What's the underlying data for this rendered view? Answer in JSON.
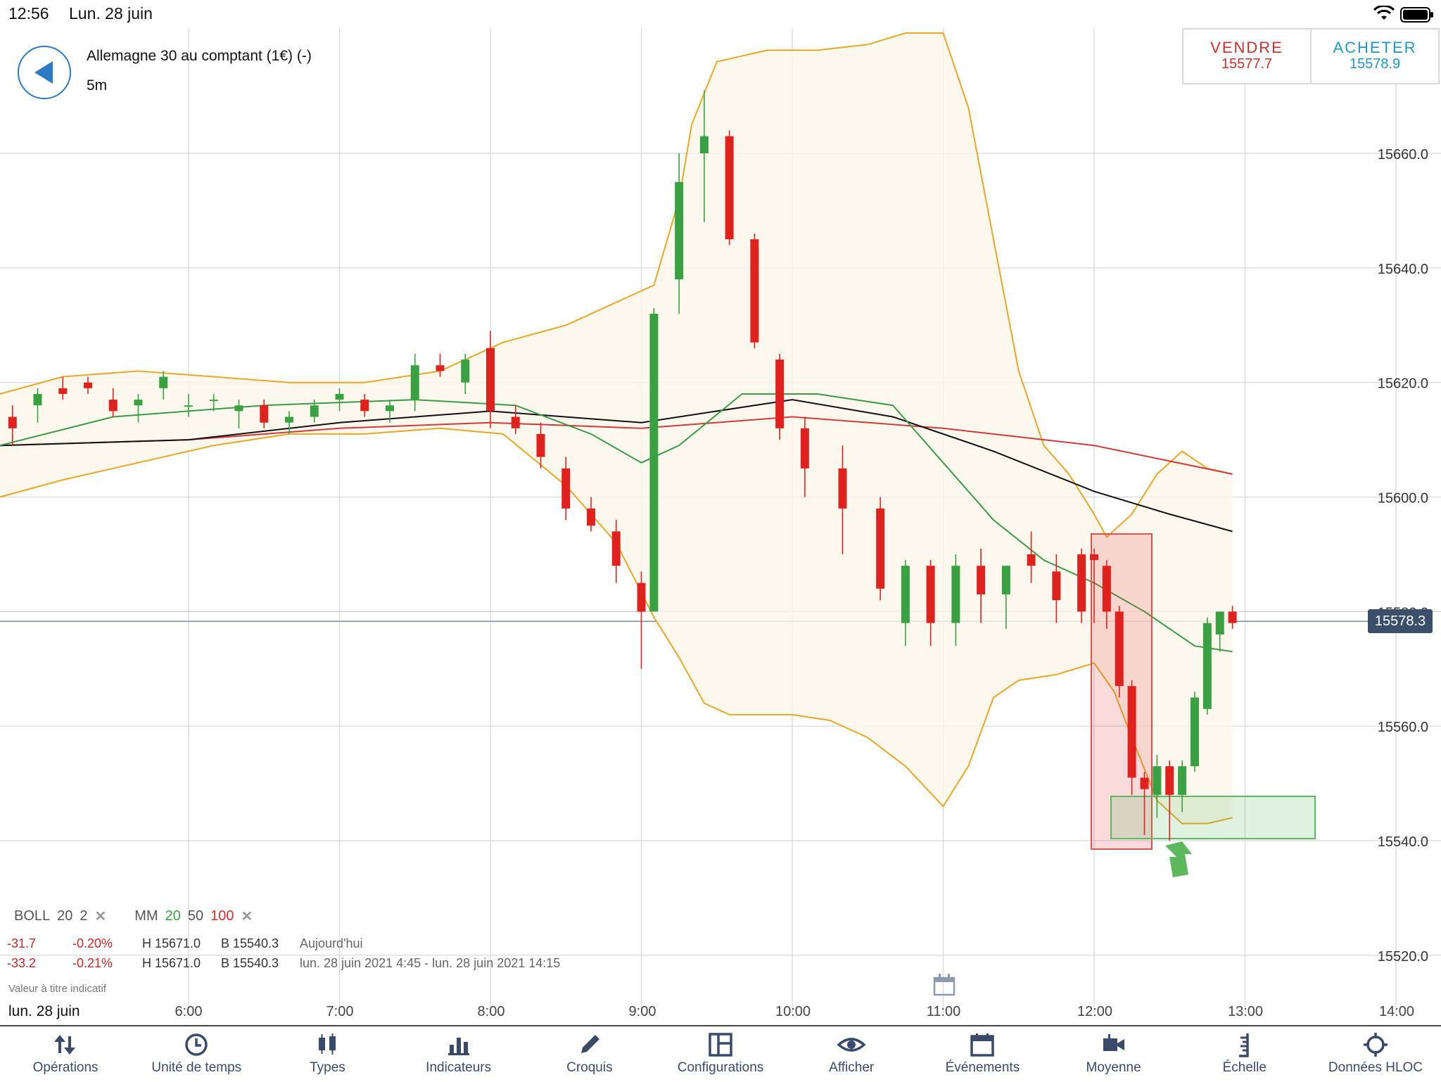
{
  "status_bar": {
    "time": "12:56",
    "date": "Lun. 28 juin"
  },
  "instrument": {
    "name": "Allemagne 30 au comptant (1€) (-)",
    "timeframe": "5m"
  },
  "trade": {
    "sell_label": "VENDRE",
    "sell_price": "15577.7",
    "buy_label": "ACHETER",
    "buy_price": "15578.9"
  },
  "indicators": {
    "boll_label": "BOLL",
    "boll_period": "20",
    "boll_dev": "2",
    "mm_label": "MM",
    "mm_1": "20",
    "mm_2": "50",
    "mm_3": "100",
    "remove_symbol": "✕"
  },
  "stats": [
    {
      "change": "-31.7",
      "percent": "-0.20%",
      "high": "H 15671.0",
      "low": "B 15540.3",
      "period": "Aujourd'hui"
    },
    {
      "change": "-33.2",
      "percent": "-0.21%",
      "high": "H 15671.0",
      "low": "B 15540.3",
      "period": "lun. 28 juin 2021 4:45 - lun. 28 juin 2021 14:15"
    }
  ],
  "note": "Valeur à titre indicatif",
  "x_axis_date": "lun. 28 juin",
  "current_price_tag": "15578.3",
  "colors": {
    "bull": "#3aa142",
    "bear": "#e0221f",
    "boll": "#e8a825",
    "ma20": "#3c9a48",
    "ma50": "#111111",
    "ma100": "#d23a3a",
    "accent": "#2b7bc4"
  },
  "toolbar": [
    {
      "label": "Opérations",
      "icon": "arrows-updown-icon"
    },
    {
      "label": "Unité de temps",
      "icon": "clock-icon"
    },
    {
      "label": "Types",
      "icon": "candles-icon"
    },
    {
      "label": "Indicateurs",
      "icon": "bars-icon"
    },
    {
      "label": "Croquis",
      "icon": "pencil-icon"
    },
    {
      "label": "Configurations",
      "icon": "layout-icon"
    },
    {
      "label": "Afficher",
      "icon": "eye-icon"
    },
    {
      "label": "Événements",
      "icon": "calendar-icon"
    },
    {
      "label": "Moyenne",
      "icon": "camera-icon"
    },
    {
      "label": "Échelle",
      "icon": "ruler-icon"
    },
    {
      "label": "Données HLOC",
      "icon": "crosshair-icon"
    }
  ],
  "chart_data": {
    "type": "candlestick",
    "x_ticks": [
      "6:00",
      "7:00",
      "8:00",
      "9:00",
      "10:00",
      "11:00",
      "12:00",
      "13:00",
      "14:00"
    ],
    "y_ticks": [
      "15520.0",
      "15540.0",
      "15560.0",
      "15580.0",
      "15600.0",
      "15620.0",
      "15640.0",
      "15660.0"
    ],
    "ylim": [
      15516,
      15682
    ],
    "indicators": [
      "BOLL 20 2",
      "MM 20",
      "MM 50",
      "MM 100"
    ],
    "candles_approx": [
      {
        "t": "4:50",
        "o": 15614,
        "h": 15616,
        "l": 15609,
        "c": 15612
      },
      {
        "t": "5:00",
        "o": 15616,
        "h": 15619,
        "l": 15613,
        "c": 15618
      },
      {
        "t": "5:10",
        "o": 15619,
        "h": 15621,
        "l": 15617,
        "c": 15618
      },
      {
        "t": "5:20",
        "o": 15620,
        "h": 15621,
        "l": 15618,
        "c": 15619
      },
      {
        "t": "5:30",
        "o": 15617,
        "h": 15619,
        "l": 15614,
        "c": 15615
      },
      {
        "t": "5:40",
        "o": 15616,
        "h": 15618,
        "l": 15613,
        "c": 15617
      },
      {
        "t": "5:50",
        "o": 15619,
        "h": 15622,
        "l": 15617,
        "c": 15621
      },
      {
        "t": "6:00",
        "o": 15616,
        "h": 15618,
        "l": 15614,
        "c": 15616
      },
      {
        "t": "6:10",
        "o": 15617,
        "h": 15618,
        "l": 15615,
        "c": 15617
      },
      {
        "t": "6:20",
        "o": 15615,
        "h": 15617,
        "l": 15612,
        "c": 15616
      },
      {
        "t": "6:30",
        "o": 15616,
        "h": 15617,
        "l": 15612,
        "c": 15613
      },
      {
        "t": "6:40",
        "o": 15613,
        "h": 15615,
        "l": 15611,
        "c": 15614
      },
      {
        "t": "6:50",
        "o": 15614,
        "h": 15617,
        "l": 15613,
        "c": 15616
      },
      {
        "t": "7:00",
        "o": 15617,
        "h": 15619,
        "l": 15615,
        "c": 15618
      },
      {
        "t": "7:10",
        "o": 15617,
        "h": 15618,
        "l": 15614,
        "c": 15615
      },
      {
        "t": "7:20",
        "o": 15615,
        "h": 15617,
        "l": 15613,
        "c": 15616
      },
      {
        "t": "7:30",
        "o": 15617,
        "h": 15625,
        "l": 15615,
        "c": 15623
      },
      {
        "t": "7:40",
        "o": 15623,
        "h": 15625,
        "l": 15621,
        "c": 15622
      },
      {
        "t": "7:50",
        "o": 15620,
        "h": 15625,
        "l": 15618,
        "c": 15624
      },
      {
        "t": "8:00",
        "o": 15626,
        "h": 15629,
        "l": 15612,
        "c": 15615
      },
      {
        "t": "8:10",
        "o": 15614,
        "h": 15616,
        "l": 15611,
        "c": 15612
      },
      {
        "t": "8:20",
        "o": 15611,
        "h": 15613,
        "l": 15605,
        "c": 15607
      },
      {
        "t": "8:30",
        "o": 15605,
        "h": 15607,
        "l": 15596,
        "c": 15598
      },
      {
        "t": "8:40",
        "o": 15598,
        "h": 15600,
        "l": 15594,
        "c": 15595
      },
      {
        "t": "8:50",
        "o": 15594,
        "h": 15596,
        "l": 15585,
        "c": 15588
      },
      {
        "t": "9:00",
        "o": 15585,
        "h": 15587,
        "l": 15570,
        "c": 15580
      },
      {
        "t": "9:05",
        "o": 15580,
        "h": 15633,
        "l": 15580,
        "c": 15632
      },
      {
        "t": "9:15",
        "o": 15638,
        "h": 15660,
        "l": 15632,
        "c": 15655
      },
      {
        "t": "9:25",
        "o": 15660,
        "h": 15671,
        "l": 15648,
        "c": 15663
      },
      {
        "t": "9:35",
        "o": 15663,
        "h": 15664,
        "l": 15644,
        "c": 15645
      },
      {
        "t": "9:45",
        "o": 15645,
        "h": 15646,
        "l": 15626,
        "c": 15627
      },
      {
        "t": "9:55",
        "o": 15624,
        "h": 15625,
        "l": 15610,
        "c": 15612
      },
      {
        "t": "10:05",
        "o": 15612,
        "h": 15614,
        "l": 15600,
        "c": 15605
      },
      {
        "t": "10:20",
        "o": 15605,
        "h": 15609,
        "l": 15590,
        "c": 15598
      },
      {
        "t": "10:35",
        "o": 15598,
        "h": 15600,
        "l": 15582,
        "c": 15584
      },
      {
        "t": "10:45",
        "o": 15578,
        "h": 15589,
        "l": 15574,
        "c": 15588
      },
      {
        "t": "10:55",
        "o": 15588,
        "h": 15589,
        "l": 15574,
        "c": 15578
      },
      {
        "t": "11:05",
        "o": 15578,
        "h": 15590,
        "l": 15574,
        "c": 15588
      },
      {
        "t": "11:15",
        "o": 15588,
        "h": 15591,
        "l": 15578,
        "c": 15583
      },
      {
        "t": "11:25",
        "o": 15583,
        "h": 15588,
        "l": 15577,
        "c": 15588
      },
      {
        "t": "11:35",
        "o": 15590,
        "h": 15594,
        "l": 15585,
        "c": 15588
      },
      {
        "t": "11:45",
        "o": 15587,
        "h": 15590,
        "l": 15578,
        "c": 15582
      },
      {
        "t": "11:55",
        "o": 15590,
        "h": 15591,
        "l": 15578,
        "c": 15580
      },
      {
        "t": "12:00",
        "o": 15590,
        "h": 15591,
        "l": 15578,
        "c": 15589
      },
      {
        "t": "12:05",
        "o": 15588,
        "h": 15589,
        "l": 15577,
        "c": 15580
      },
      {
        "t": "12:10",
        "o": 15580,
        "h": 15581,
        "l": 15565,
        "c": 15567
      },
      {
        "t": "12:15",
        "o": 15567,
        "h": 15568,
        "l": 15548,
        "c": 15551
      },
      {
        "t": "12:20",
        "o": 15551,
        "h": 15552,
        "l": 15541,
        "c": 15549
      },
      {
        "t": "12:25",
        "o": 15548,
        "h": 15555,
        "l": 15544,
        "c": 15553
      },
      {
        "t": "12:30",
        "o": 15553,
        "h": 15554,
        "l": 15540,
        "c": 15548
      },
      {
        "t": "12:35",
        "o": 15548,
        "h": 15554,
        "l": 15545,
        "c": 15553
      },
      {
        "t": "12:40",
        "o": 15553,
        "h": 15566,
        "l": 15552,
        "c": 15565
      },
      {
        "t": "12:45",
        "o": 15563,
        "h": 15579,
        "l": 15562,
        "c": 15578
      },
      {
        "t": "12:50",
        "o": 15576,
        "h": 15580,
        "l": 15573,
        "c": 15580
      },
      {
        "t": "12:55",
        "o": 15580,
        "h": 15581,
        "l": 15577,
        "c": 15578
      }
    ]
  }
}
